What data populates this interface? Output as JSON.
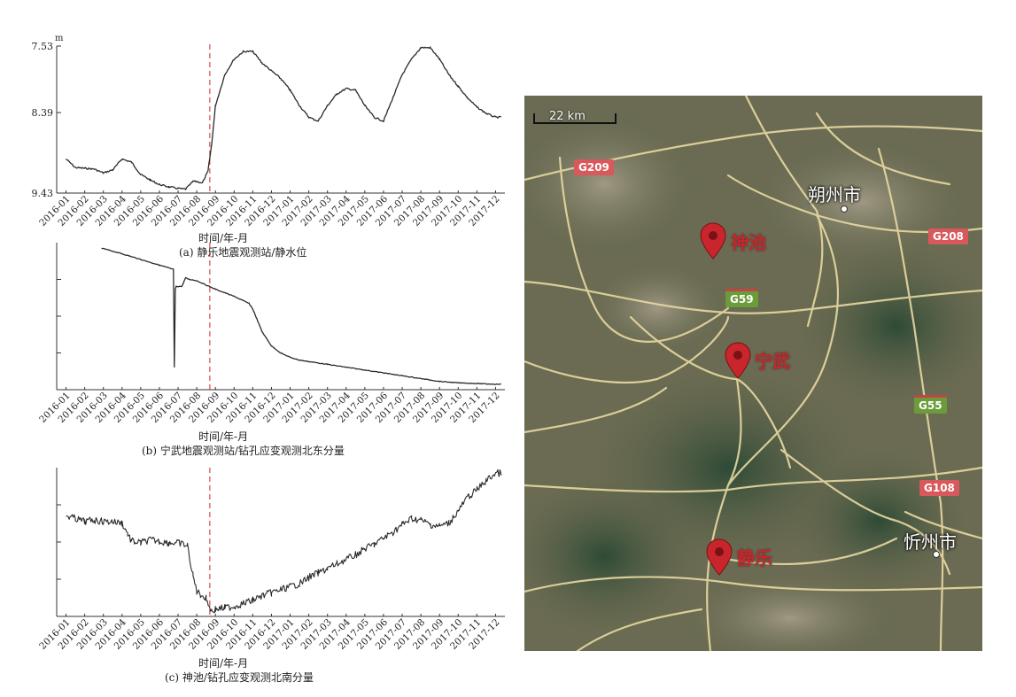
{
  "chart_data": [
    {
      "type": "line",
      "title": "",
      "caption": "(a) 静乐地震观测站/静水位",
      "xlabel": "时间/年-月",
      "ylabel": "m",
      "y_inverted": true,
      "yticks": [
        "7.53",
        "8.39",
        "9.43"
      ],
      "ylim": [
        9.43,
        7.53
      ],
      "event_line_x": 7.7,
      "categories": [
        "2016-01",
        "2016-02",
        "2016-03",
        "2016-04",
        "2016-05",
        "2016-06",
        "2016-07",
        "2016-08",
        "2016-09",
        "2016-10",
        "2016-11",
        "2016-12",
        "2017-01",
        "2017-02",
        "2017-03",
        "2017-04",
        "2017-05",
        "2017-06",
        "2017-07",
        "2017-08",
        "2017-09",
        "2017-10",
        "2017-11",
        "2017-12"
      ],
      "series": [
        {
          "name": "",
          "x": [
            0,
            0.5,
            1,
            1.5,
            2,
            2.5,
            3,
            3.5,
            4,
            4.5,
            5,
            5.5,
            6,
            6.4,
            6.8,
            7.0,
            7.3,
            7.6,
            7.8,
            8.0,
            8.5,
            9,
            9.5,
            10,
            10.5,
            11,
            11.5,
            12,
            12.5,
            13,
            13.5,
            14,
            14.5,
            15,
            15.5,
            16,
            16.5,
            17,
            17.5,
            18,
            18.5,
            19,
            19.5,
            20,
            20.5,
            21,
            21.5,
            22,
            22.5,
            23,
            23.3
          ],
          "values": [
            8.99,
            9.1,
            9.11,
            9.12,
            9.17,
            9.13,
            8.99,
            9.03,
            9.19,
            9.26,
            9.32,
            9.35,
            9.37,
            9.38,
            9.28,
            9.28,
            9.3,
            9.15,
            8.8,
            8.3,
            7.9,
            7.7,
            7.6,
            7.6,
            7.75,
            7.85,
            7.95,
            8.1,
            8.3,
            8.45,
            8.5,
            8.3,
            8.15,
            8.08,
            8.1,
            8.3,
            8.45,
            8.5,
            8.2,
            7.9,
            7.7,
            7.55,
            7.55,
            7.7,
            7.9,
            8.05,
            8.2,
            8.32,
            8.4,
            8.45,
            8.45
          ]
        }
      ]
    },
    {
      "type": "line",
      "title": "",
      "caption": "(b) 宁武地震观测站/钻孔应变观测北东分量",
      "xlabel": "时间/年-月",
      "yticks": [],
      "event_line_x": 7.7,
      "categories": [
        "2016-01",
        "2016-02",
        "2016-03",
        "2016-04",
        "2016-05",
        "2016-06",
        "2016-07",
        "2016-08",
        "2016-09",
        "2016-10",
        "2016-11",
        "2016-12",
        "2017-01",
        "2017-02",
        "2017-03",
        "2017-04",
        "2017-05",
        "2017-06",
        "2017-07",
        "2017-08",
        "2017-09",
        "2017-10",
        "2017-11",
        "2017-12"
      ],
      "series": [
        {
          "name": "",
          "x": [
            1.9,
            3,
            4,
            5,
            5.5,
            5.75,
            5.8,
            5.85,
            5.9,
            6.2,
            6.4,
            6.6,
            7,
            8,
            9,
            9.8,
            10,
            10.5,
            11,
            11.5,
            12,
            12.5,
            13,
            14,
            15,
            16,
            17,
            18,
            19,
            20,
            21,
            22,
            23,
            23.3
          ],
          "values": [
            0.99,
            0.95,
            0.91,
            0.87,
            0.85,
            0.84,
            0.15,
            0.7,
            0.72,
            0.72,
            0.78,
            0.77,
            0.76,
            0.7,
            0.65,
            0.6,
            0.56,
            0.4,
            0.3,
            0.25,
            0.22,
            0.2,
            0.19,
            0.17,
            0.15,
            0.13,
            0.11,
            0.09,
            0.07,
            0.05,
            0.04,
            0.035,
            0.03,
            0.03
          ]
        }
      ]
    },
    {
      "type": "line",
      "title": "",
      "caption": "(c) 神池/钻孔应变观测北南分量",
      "xlabel": "时间/年-月",
      "yticks": [],
      "event_line_x": 7.7,
      "categories": [
        "2016-01",
        "2016-02",
        "2016-03",
        "2016-04",
        "2016-05",
        "2016-06",
        "2016-07",
        "2016-08",
        "2016-09",
        "2016-10",
        "2016-11",
        "2016-12",
        "2017-01",
        "2017-02",
        "2017-03",
        "2017-04",
        "2017-05",
        "2017-06",
        "2017-07",
        "2017-08",
        "2017-09",
        "2017-10",
        "2017-11",
        "2017-12"
      ],
      "series": [
        {
          "name": "",
          "x": [
            0,
            0.5,
            1,
            1.5,
            2,
            2.5,
            3,
            3.3,
            3.5,
            4,
            4.5,
            5,
            5.5,
            6,
            6.5,
            6.8,
            7,
            7.2,
            7.5,
            7.8,
            8,
            8.5,
            9,
            9.5,
            10,
            10.5,
            11,
            11.5,
            12,
            12.5,
            13,
            13.5,
            14,
            14.5,
            15,
            15.5,
            16,
            16.5,
            17,
            17.5,
            18,
            18.5,
            19,
            19.5,
            20,
            20.5,
            21,
            21.5,
            22,
            22.5,
            23,
            23.3
          ],
          "values": [
            0.9,
            0.88,
            0.86,
            0.87,
            0.86,
            0.86,
            0.85,
            0.78,
            0.73,
            0.72,
            0.74,
            0.73,
            0.72,
            0.72,
            0.7,
            0.5,
            0.4,
            0.38,
            0.35,
            0.27,
            0.28,
            0.29,
            0.3,
            0.32,
            0.34,
            0.37,
            0.39,
            0.41,
            0.43,
            0.45,
            0.49,
            0.52,
            0.55,
            0.58,
            0.61,
            0.64,
            0.68,
            0.71,
            0.75,
            0.79,
            0.84,
            0.88,
            0.87,
            0.84,
            0.83,
            0.85,
            0.93,
            1.02,
            1.07,
            1.13,
            1.18,
            1.18
          ]
        }
      ]
    }
  ],
  "map": {
    "scale": "22 km",
    "cities": {
      "shuozhou": "朔州市",
      "xinzhou": "忻州市"
    },
    "markers": {
      "shenchi": "神池",
      "ningwu": "宁武",
      "jingle": "静乐"
    },
    "roads": {
      "g209": "G209",
      "g208": "G208",
      "g59": "G59",
      "g55": "G55",
      "g108": "G108"
    },
    "colors": {
      "marker": "#c8262c",
      "road_red": "#d9585b",
      "road_green": "#6a9c3a"
    }
  }
}
